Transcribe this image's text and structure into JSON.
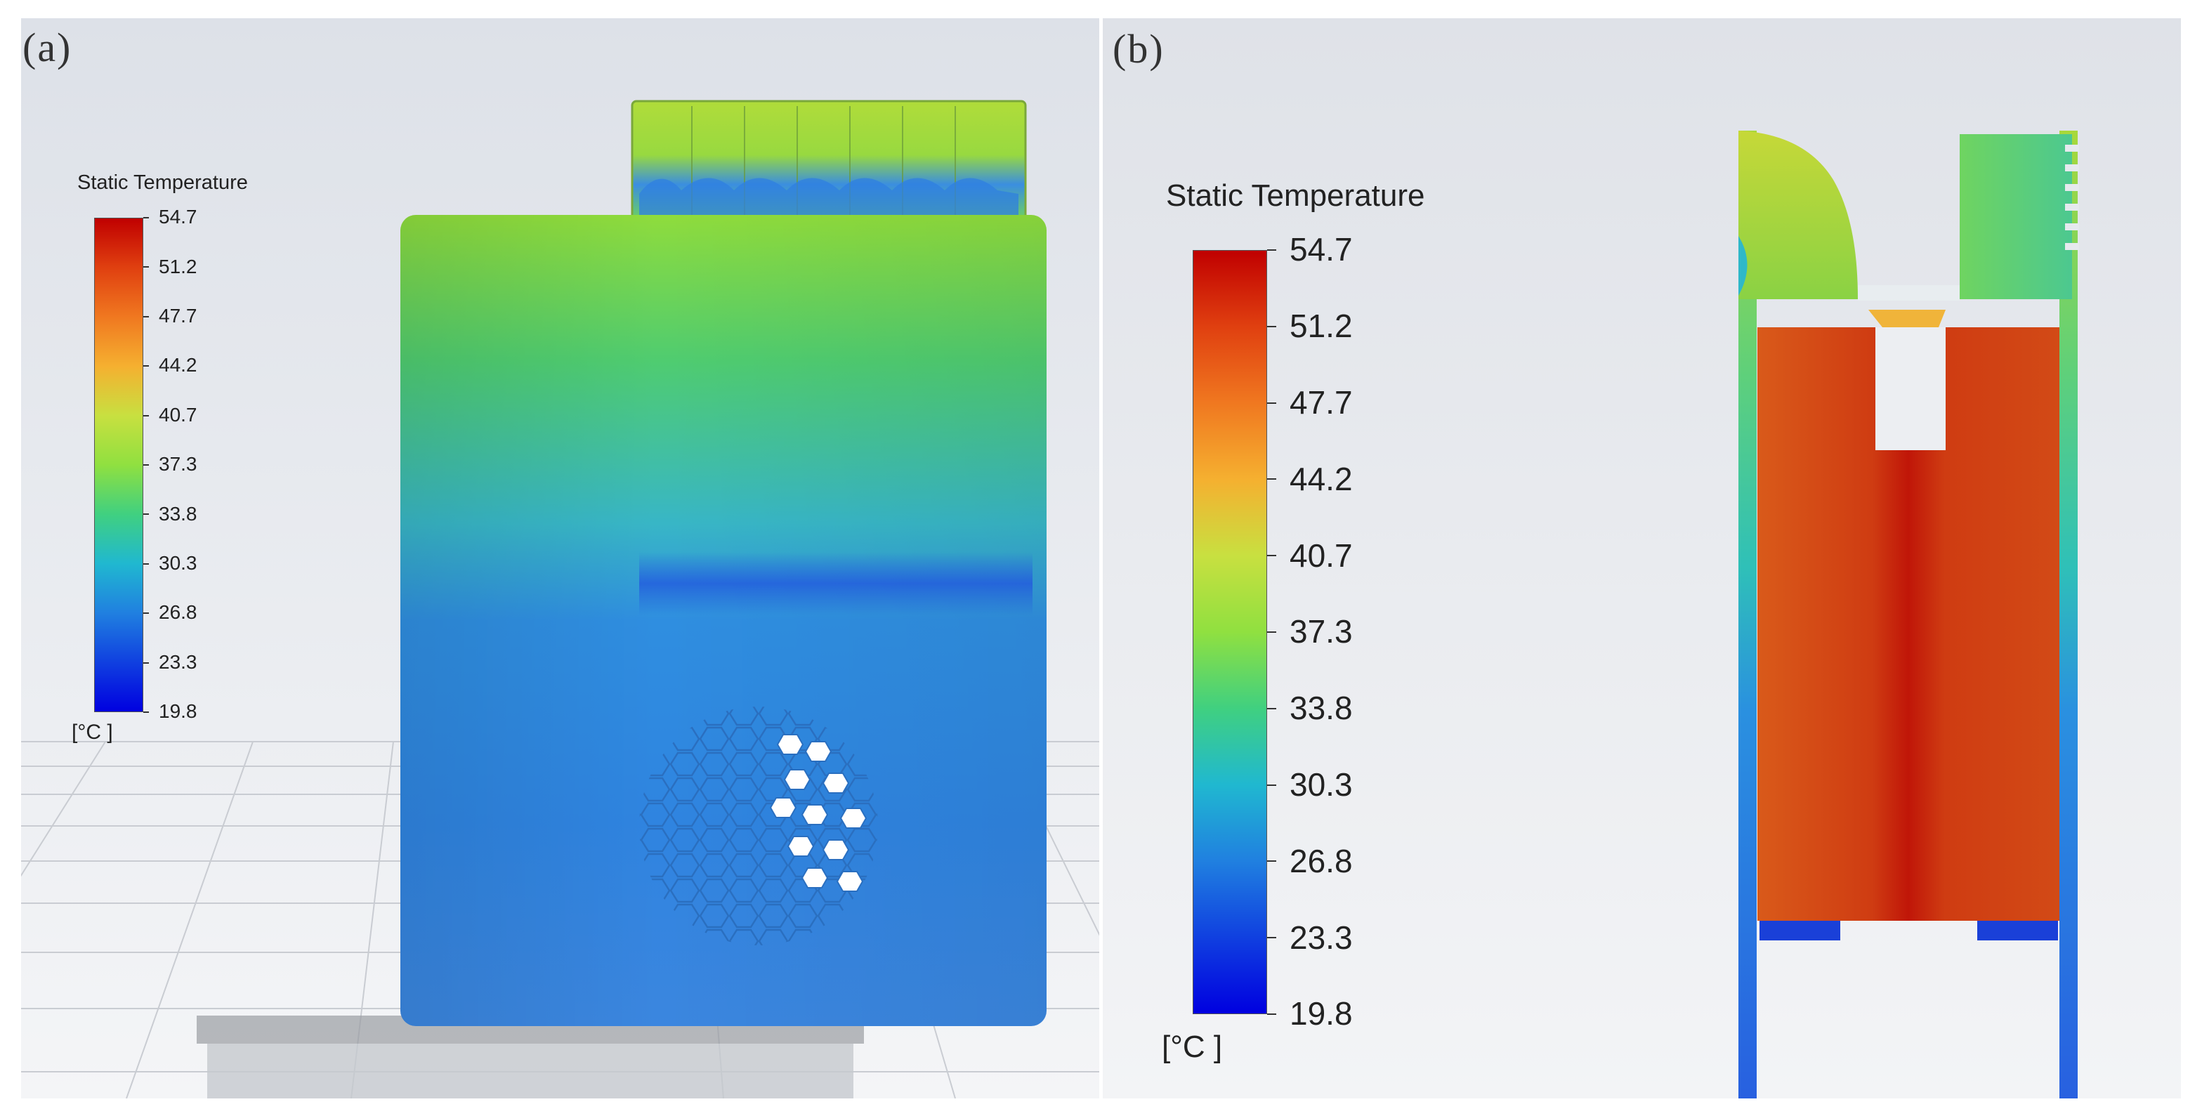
{
  "panels": [
    {
      "label": "(a)",
      "colorbar": {
        "title": "Static Temperature",
        "ticks": [
          "54.7",
          "51.2",
          "47.7",
          "44.2",
          "40.7",
          "37.3",
          "33.8",
          "30.3",
          "26.8",
          "23.3",
          "19.8"
        ],
        "unit": "[°C ]"
      }
    },
    {
      "label": "(b)",
      "colorbar": {
        "title": "Static Temperature",
        "ticks": [
          "54.7",
          "51.2",
          "47.7",
          "44.2",
          "40.7",
          "37.3",
          "33.8",
          "30.3",
          "26.8",
          "23.3",
          "19.8"
        ],
        "unit": "[°C ]"
      }
    }
  ],
  "colormap": [
    "#c00000",
    "#e04010",
    "#f07820",
    "#f5b030",
    "#c8e040",
    "#90e040",
    "#40d080",
    "#20b8d0",
    "#2080e0",
    "#1040e0",
    "#0000e0"
  ],
  "colors": {
    "panel_bg": "#e6e9ee",
    "hot_core": "#c01808",
    "hot_body": "#d04818",
    "cool_body": "#3a8ce0",
    "mid_green": "#7fd84a"
  }
}
